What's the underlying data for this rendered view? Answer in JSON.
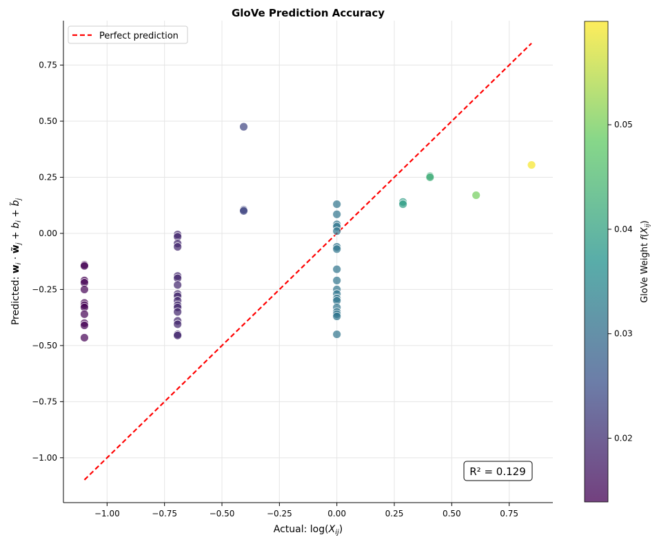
{
  "chart_data": {
    "type": "scatter",
    "title": "GloVe Prediction Accuracy",
    "xlabel": "Actual: log(X_ij)",
    "ylabel": "Predicted: w_i · w̃_j + b_i + b̃_j",
    "xlim": [
      -1.19,
      0.94
    ],
    "ylim": [
      -1.2,
      0.948
    ],
    "xticks": [
      -1.0,
      -0.75,
      -0.5,
      -0.25,
      0.0,
      0.25,
      0.5,
      0.75
    ],
    "xtick_labels": [
      "−1.00",
      "−0.75",
      "−0.50",
      "−0.25",
      "0.00",
      "0.25",
      "0.50",
      "0.75"
    ],
    "yticks": [
      0.75,
      0.5,
      0.25,
      0.0,
      -0.25,
      -0.5,
      -0.75,
      -1.0
    ],
    "ytick_labels": [
      "0.75",
      "0.50",
      "0.25",
      "0.00",
      "−0.25",
      "−0.50",
      "−0.75",
      "−1.00"
    ],
    "grid": true,
    "legend": {
      "placement": "top-left",
      "entries": [
        "Perfect prediction"
      ]
    },
    "reference_line": {
      "name": "Perfect prediction",
      "from": [
        -1.0986,
        -1.0986
      ],
      "to": [
        0.847,
        0.847
      ],
      "color": "#ff0000",
      "style": "dashed"
    },
    "annotation": "R² = 0.129",
    "colormap": "viridis",
    "colorbar": {
      "label": "GloVe Weight f(X_ij)",
      "range": [
        0.0139,
        0.0599
      ],
      "ticks": [
        0.02,
        0.03,
        0.04,
        0.05
      ],
      "tick_labels": [
        "0.02",
        "0.03",
        "0.04",
        "0.05"
      ]
    },
    "groups": [
      {
        "x": -1.0986,
        "weight": 0.0138,
        "y": [
          -0.14,
          -0.145,
          -0.21,
          -0.22,
          -0.25,
          -0.31,
          -0.32,
          -0.33,
          -0.36,
          -0.4,
          -0.41,
          -0.465
        ]
      },
      {
        "x": -0.6931,
        "weight": 0.0187,
        "y": [
          -0.005,
          -0.015,
          -0.045,
          -0.06,
          -0.19,
          -0.2,
          -0.23,
          -0.27,
          -0.28,
          -0.3,
          -0.32,
          -0.33,
          -0.35,
          -0.39,
          -0.405,
          -0.45,
          -0.455
        ]
      },
      {
        "x": -0.4055,
        "weight": 0.0232,
        "y": [
          0.475,
          0.105,
          0.1
        ]
      },
      {
        "x": 0.0,
        "weight": 0.0315,
        "y": [
          0.13,
          0.085,
          0.04,
          0.03,
          0.01,
          -0.06,
          -0.07,
          -0.16,
          -0.21,
          -0.25,
          -0.27,
          -0.29,
          -0.3,
          -0.33,
          -0.35,
          -0.36,
          -0.37,
          -0.45
        ]
      },
      {
        "x": 0.2877,
        "weight": 0.0391,
        "y": [
          0.14,
          0.13
        ]
      },
      {
        "x": 0.4055,
        "weight": 0.0427,
        "y": [
          0.255,
          0.25
        ]
      },
      {
        "x": 0.6061,
        "weight": 0.0498,
        "y": [
          0.17
        ]
      },
      {
        "x": 0.8473,
        "weight": 0.0595,
        "y": [
          0.305
        ]
      }
    ]
  }
}
